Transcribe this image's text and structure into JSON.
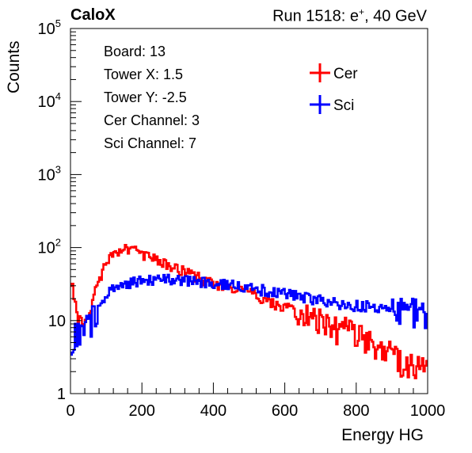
{
  "header": {
    "left_title": "CaloX",
    "right_title_pre": "Run 1518: e",
    "right_title_sup": "+",
    "right_title_post": ", 40 GeV"
  },
  "info_box": {
    "lines": [
      "Board: 13",
      "Tower X: 1.5",
      "Tower Y: -2.5",
      "Cer Channel: 3",
      "Sci Channel: 7"
    ]
  },
  "chart_data": {
    "type": "line",
    "title": "",
    "xlabel": "Energy HG",
    "ylabel": "Counts",
    "xlim": [
      0,
      1000
    ],
    "ylim": [
      1,
      100000
    ],
    "yscale": "log",
    "grid": false,
    "legend": "top-right",
    "x_ticks": [
      0,
      200,
      400,
      600,
      800,
      1000
    ],
    "x_tick_labels": [
      "0",
      "200",
      "400",
      "600",
      "800",
      "1000"
    ],
    "y_ticks": [
      1,
      10,
      100,
      1000,
      10000,
      100000
    ],
    "y_tick_labels": [
      {
        "base": "1",
        "exp": ""
      },
      {
        "base": "10",
        "exp": ""
      },
      {
        "base": "10",
        "exp": "2"
      },
      {
        "base": "10",
        "exp": "3"
      },
      {
        "base": "10",
        "exp": "4"
      },
      {
        "base": "10",
        "exp": "5"
      }
    ],
    "x": [
      0,
      25,
      50,
      75,
      100,
      125,
      150,
      175,
      200,
      225,
      250,
      275,
      300,
      325,
      350,
      375,
      400,
      425,
      450,
      475,
      500,
      525,
      550,
      575,
      600,
      625,
      650,
      675,
      700,
      725,
      750,
      775,
      800,
      825,
      850,
      875,
      900,
      925,
      950,
      975,
      1000
    ],
    "series": [
      {
        "name": "Cer",
        "color": "#ff0000",
        "values": [
          40,
          9,
          12,
          30,
          60,
          85,
          98,
          92,
          82,
          78,
          68,
          60,
          52,
          46,
          40,
          36,
          32,
          30,
          28,
          26,
          24,
          22,
          19,
          17,
          15,
          13,
          12,
          11,
          10,
          9,
          8,
          7.5,
          7,
          6,
          5,
          4,
          3.5,
          3,
          2.5,
          2.5,
          2.5
        ]
      },
      {
        "name": "Sci",
        "color": "#0000ff",
        "values": [
          6,
          7,
          9,
          14,
          22,
          28,
          32,
          34,
          36,
          36,
          37,
          37,
          36,
          35,
          34,
          34,
          33,
          32,
          31,
          30,
          29,
          27,
          26,
          25,
          24,
          22,
          21,
          20,
          19,
          18,
          17,
          17,
          16,
          16,
          15,
          15,
          15,
          14,
          14,
          14,
          14
        ]
      }
    ]
  }
}
